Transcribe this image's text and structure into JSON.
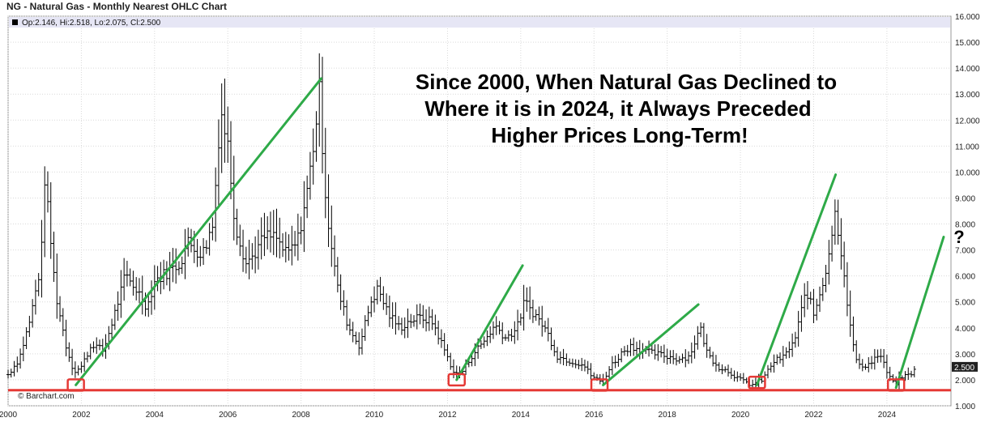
{
  "chart_data": {
    "type": "ohlc",
    "title": "NG - Natural Gas - Monthly Nearest OHLC Chart",
    "legend": {
      "text": "Op:2.146, Hi:2.518, Lo:2.075, Cl:2.500",
      "placement": "top-left"
    },
    "last_price_label": "2.500",
    "credit": "© Barchart.com",
    "annotation": "Since 2000, When Natural Gas Declined to Where it is in 2024, it Always Preceded Higher Prices Long-Term!",
    "question_mark": "?",
    "xlim": [
      2000.0,
      2025.75
    ],
    "ylim": [
      1.0,
      16.0
    ],
    "x_ticks": [
      "2000",
      "2002",
      "2004",
      "2006",
      "2008",
      "2010",
      "2012",
      "2014",
      "2016",
      "2018",
      "2020",
      "2022",
      "2024"
    ],
    "y_ticks": [
      "1.000",
      "2.000",
      "3.000",
      "4.000",
      "5.000",
      "6.000",
      "7.000",
      "8.000",
      "9.000",
      "10.000",
      "11.000",
      "12.000",
      "13.000",
      "14.000",
      "15.000",
      "16.000"
    ],
    "y_axis_side": "right",
    "grid": true,
    "price_path": [
      [
        2000.0,
        2.2
      ],
      [
        2000.3,
        2.8
      ],
      [
        2000.6,
        4.3
      ],
      [
        2000.9,
        6.5
      ],
      [
        2001.0,
        9.8
      ],
      [
        2001.3,
        5.3
      ],
      [
        2001.6,
        3.2
      ],
      [
        2001.8,
        2.3
      ],
      [
        2002.0,
        2.5
      ],
      [
        2002.3,
        3.4
      ],
      [
        2002.6,
        3.1
      ],
      [
        2002.9,
        4.5
      ],
      [
        2003.2,
        6.0
      ],
      [
        2003.5,
        5.5
      ],
      [
        2003.8,
        4.8
      ],
      [
        2004.0,
        5.8
      ],
      [
        2004.4,
        6.2
      ],
      [
        2004.7,
        6.5
      ],
      [
        2004.9,
        7.3
      ],
      [
        2005.3,
        6.8
      ],
      [
        2005.6,
        8.0
      ],
      [
        2005.8,
        12.5
      ],
      [
        2006.0,
        11.0
      ],
      [
        2006.2,
        8.0
      ],
      [
        2006.5,
        6.5
      ],
      [
        2006.7,
        6.8
      ],
      [
        2007.0,
        7.5
      ],
      [
        2007.3,
        7.5
      ],
      [
        2007.6,
        6.8
      ],
      [
        2007.9,
        7.3
      ],
      [
        2008.2,
        9.5
      ],
      [
        2008.5,
        13.0
      ],
      [
        2008.7,
        8.5
      ],
      [
        2009.0,
        5.5
      ],
      [
        2009.3,
        4.0
      ],
      [
        2009.6,
        3.3
      ],
      [
        2009.9,
        5.0
      ],
      [
        2010.1,
        5.5
      ],
      [
        2010.4,
        4.5
      ],
      [
        2010.7,
        4.0
      ],
      [
        2011.0,
        4.3
      ],
      [
        2011.3,
        4.4
      ],
      [
        2011.6,
        4.2
      ],
      [
        2011.9,
        3.2
      ],
      [
        2012.2,
        2.2
      ],
      [
        2012.4,
        2.3
      ],
      [
        2012.7,
        3.0
      ],
      [
        2013.0,
        3.5
      ],
      [
        2013.3,
        4.1
      ],
      [
        2013.6,
        3.6
      ],
      [
        2013.9,
        4.0
      ],
      [
        2014.1,
        5.0
      ],
      [
        2014.4,
        4.5
      ],
      [
        2014.7,
        3.9
      ],
      [
        2015.0,
        2.9
      ],
      [
        2015.4,
        2.7
      ],
      [
        2015.7,
        2.6
      ],
      [
        2015.9,
        2.2
      ],
      [
        2016.2,
        1.9
      ],
      [
        2016.5,
        2.6
      ],
      [
        2016.8,
        3.1
      ],
      [
        2017.0,
        3.3
      ],
      [
        2017.4,
        3.1
      ],
      [
        2017.7,
        3.0
      ],
      [
        2018.0,
        2.9
      ],
      [
        2018.3,
        2.8
      ],
      [
        2018.6,
        2.9
      ],
      [
        2018.9,
        4.0
      ],
      [
        2019.1,
        3.0
      ],
      [
        2019.4,
        2.5
      ],
      [
        2019.7,
        2.3
      ],
      [
        2020.0,
        2.0
      ],
      [
        2020.3,
        1.8
      ],
      [
        2020.6,
        2.0
      ],
      [
        2020.9,
        2.7
      ],
      [
        2021.2,
        2.9
      ],
      [
        2021.5,
        3.6
      ],
      [
        2021.8,
        5.5
      ],
      [
        2022.0,
        4.5
      ],
      [
        2022.3,
        6.0
      ],
      [
        2022.6,
        8.5
      ],
      [
        2022.8,
        6.5
      ],
      [
        2023.0,
        4.0
      ],
      [
        2023.2,
        2.5
      ],
      [
        2023.5,
        2.6
      ],
      [
        2023.8,
        3.0
      ],
      [
        2024.0,
        2.3
      ],
      [
        2024.2,
        1.8
      ],
      [
        2024.4,
        2.1
      ],
      [
        2024.6,
        2.2
      ],
      [
        2024.8,
        2.4
      ]
    ],
    "ohlc_last": {
      "open": 2.146,
      "high": 2.518,
      "low": 2.075,
      "close": 2.5
    },
    "support_line": {
      "y": 1.6,
      "color": "#e53935"
    },
    "trend_lines": [
      {
        "x1": 2001.85,
        "y1": 1.8,
        "x2": 2008.55,
        "y2": 13.6
      },
      {
        "x1": 2012.25,
        "y1": 2.0,
        "x2": 2014.05,
        "y2": 6.4
      },
      {
        "x1": 2016.25,
        "y1": 1.8,
        "x2": 2018.85,
        "y2": 4.9
      },
      {
        "x1": 2020.45,
        "y1": 1.8,
        "x2": 2022.6,
        "y2": 9.9
      },
      {
        "x1": 2024.25,
        "y1": 1.7,
        "x2": 2025.55,
        "y2": 7.5
      }
    ],
    "highlight_boxes": [
      {
        "x": 2001.85,
        "y": 1.8
      },
      {
        "x": 2012.25,
        "y": 2.0
      },
      {
        "x": 2016.15,
        "y": 1.8
      },
      {
        "x": 2020.45,
        "y": 1.9
      },
      {
        "x": 2024.25,
        "y": 1.8
      }
    ],
    "colors": {
      "bars": "#000000",
      "trend": "#2eaa48",
      "support": "#e53935",
      "box": "#e53935",
      "legend_band": "#e6e6f5"
    }
  }
}
